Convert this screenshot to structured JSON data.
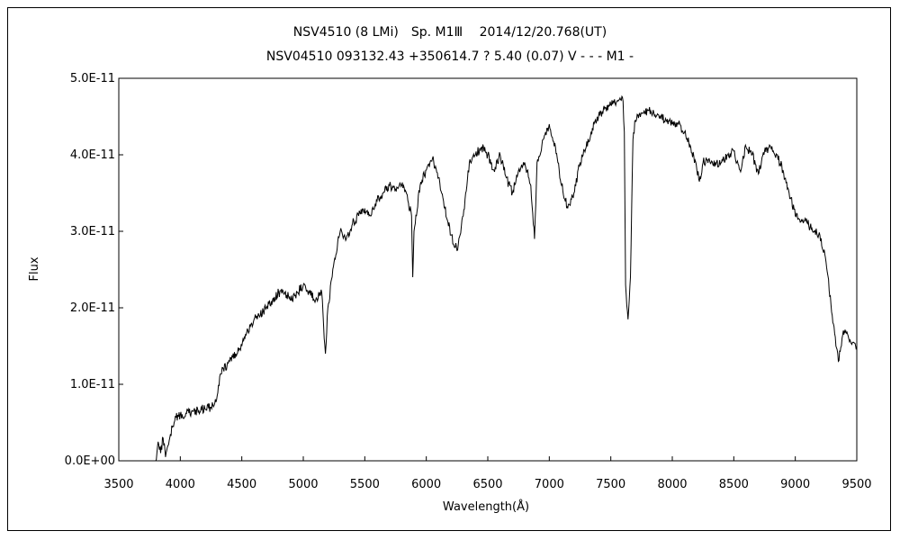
{
  "chart_data": {
    "type": "line",
    "title": "NSV4510 (8 LMi)　Sp. M1Ⅲ　 2014/12/20.768(UT)",
    "subtitle": "NSV04510 093132.43 +350614.7 ? 5.40 (0.07) V - - - M1 -",
    "xlabel": "Wavelength(Å)",
    "ylabel": "Flux",
    "xlim": [
      3500,
      9500
    ],
    "ylim": [
      0,
      5e-11
    ],
    "xticks": [
      3500,
      4000,
      4500,
      5000,
      5500,
      6000,
      6500,
      7000,
      7500,
      8000,
      8500,
      9000,
      9500
    ],
    "xtick_labels": [
      "3500",
      "4000",
      "4500",
      "5000",
      "5500",
      "6000",
      "6500",
      "7000",
      "7500",
      "8000",
      "8500",
      "9000",
      "9500"
    ],
    "yticks": [
      0,
      1e-11,
      2e-11,
      3e-11,
      4e-11,
      5e-11
    ],
    "ytick_labels": [
      "0.0E+00",
      "1.0E-11",
      "2.0E-11",
      "3.0E-11",
      "4.0E-11",
      "5.0E-11"
    ],
    "grid": false,
    "legend": "none",
    "line_color": "#000000",
    "series": [
      {
        "x": [
          3800,
          3820,
          3840,
          3860,
          3880,
          3900,
          3920,
          3950,
          3980,
          4000,
          4050,
          4100,
          4150,
          4200,
          4250,
          4280,
          4300,
          4320,
          4350,
          4380,
          4400,
          4450,
          4500,
          4550,
          4600,
          4650,
          4700,
          4750,
          4800,
          4850,
          4900,
          4950,
          5000,
          5050,
          5100,
          5150,
          5170,
          5180,
          5200,
          5250,
          5300,
          5350,
          5400,
          5450,
          5500,
          5550,
          5600,
          5650,
          5700,
          5750,
          5800,
          5850,
          5880,
          5890,
          5900,
          5950,
          6000,
          6050,
          6100,
          6150,
          6200,
          6250,
          6300,
          6350,
          6400,
          6450,
          6500,
          6550,
          6600,
          6650,
          6700,
          6750,
          6800,
          6850,
          6880,
          6900,
          6950,
          7000,
          7050,
          7100,
          7150,
          7200,
          7250,
          7300,
          7350,
          7400,
          7450,
          7500,
          7550,
          7580,
          7600,
          7610,
          7620,
          7640,
          7660,
          7680,
          7700,
          7750,
          7800,
          7850,
          7900,
          7950,
          8000,
          8050,
          8100,
          8150,
          8200,
          8220,
          8250,
          8300,
          8350,
          8400,
          8450,
          8500,
          8550,
          8600,
          8650,
          8700,
          8750,
          8800,
          8850,
          8900,
          8950,
          9000,
          9050,
          9100,
          9150,
          9200,
          9250,
          9300,
          9330,
          9350,
          9380,
          9400,
          9450,
          9500
        ],
        "values": [
          0.0,
          2.5e-12,
          1e-12,
          3e-12,
          5e-13,
          2e-12,
          3.5e-12,
          5e-12,
          6e-12,
          6e-12,
          6.2e-12,
          6.5e-12,
          6.6e-12,
          6.8e-12,
          7e-12,
          7.5e-12,
          8.5e-12,
          1.1e-11,
          1.2e-11,
          1.25e-11,
          1.3e-11,
          1.4e-11,
          1.5e-11,
          1.7e-11,
          1.85e-11,
          1.9e-11,
          2e-11,
          2.1e-11,
          2.2e-11,
          2.2e-11,
          2.1e-11,
          2.2e-11,
          2.3e-11,
          2.2e-11,
          2.1e-11,
          2.2e-11,
          1.6e-11,
          1.4e-11,
          2e-11,
          2.6e-11,
          3e-11,
          2.9e-11,
          3.1e-11,
          3.2e-11,
          3.3e-11,
          3.2e-11,
          3.4e-11,
          3.5e-11,
          3.6e-11,
          3.55e-11,
          3.6e-11,
          3.4e-11,
          3.2e-11,
          2.4e-11,
          3e-11,
          3.6e-11,
          3.8e-11,
          3.95e-11,
          3.7e-11,
          3.3e-11,
          2.95e-11,
          2.75e-11,
          3.2e-11,
          3.9e-11,
          4e-11,
          4.1e-11,
          4e-11,
          3.8e-11,
          4e-11,
          3.7e-11,
          3.5e-11,
          3.8e-11,
          3.9e-11,
          3.6e-11,
          2.9e-11,
          3.9e-11,
          4.2e-11,
          4.4e-11,
          4.1e-11,
          3.6e-11,
          3.3e-11,
          3.5e-11,
          3.9e-11,
          4.1e-11,
          4.35e-11,
          4.5e-11,
          4.6e-11,
          4.65e-11,
          4.7e-11,
          4.72e-11,
          4.7e-11,
          4.3e-11,
          2.3e-11,
          1.85e-11,
          2.4e-11,
          4.2e-11,
          4.45e-11,
          4.55e-11,
          4.58e-11,
          4.55e-11,
          4.5e-11,
          4.45e-11,
          4.4e-11,
          4.4e-11,
          4.3e-11,
          4.1e-11,
          3.8e-11,
          3.65e-11,
          3.9e-11,
          3.95e-11,
          3.9e-11,
          3.9e-11,
          4e-11,
          4.05e-11,
          3.8e-11,
          4.1e-11,
          4e-11,
          3.75e-11,
          4.05e-11,
          4.1e-11,
          4e-11,
          3.8e-11,
          3.5e-11,
          3.2e-11,
          3.15e-11,
          3.1e-11,
          3e-11,
          2.95e-11,
          2.6e-11,
          1.9e-11,
          1.5e-11,
          1.3e-11,
          1.6e-11,
          1.7e-11,
          1.55e-11,
          1.5e-11
        ]
      }
    ]
  }
}
